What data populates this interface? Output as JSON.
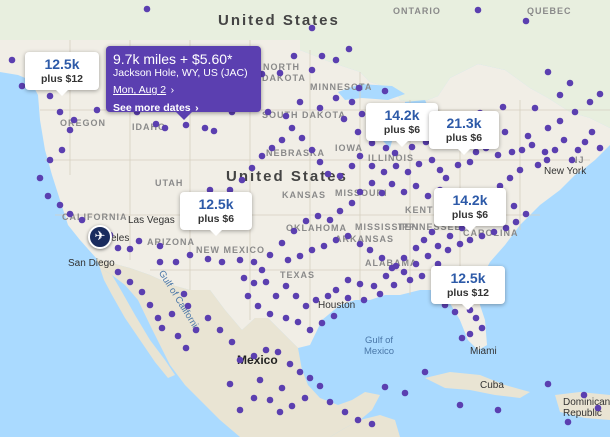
{
  "map": {
    "countries": {
      "united_states": "United States",
      "mexico": "Mexico",
      "cuba": "Cuba",
      "dominican_republic_line1": "Dominican",
      "dominican_republic_line2": "Republic"
    },
    "provinces": {
      "ontario": "ONTARIO",
      "quebec": "QUEBEC"
    },
    "states": {
      "oregon": "OREGON",
      "idaho": "IDAHO",
      "north_dakota_1": "NORTH",
      "north_dakota_2": "DAKOTA",
      "south_dakota": "SOUTH DAKOTA",
      "minnesota": "MINNESOTA",
      "nebraska": "NEBRASKA",
      "utah": "UTAH",
      "california": "CALIFORNIA",
      "arizona": "ARIZONA",
      "new_mexico": "NEW MEXICO",
      "kansas": "KANSAS",
      "missouri": "MISSOURI",
      "oklahoma": "OKLAHOMA",
      "arkansas": "ARKANSAS",
      "mississippi": "MISSISSIPPI",
      "alabama": "ALABAMA",
      "texas": "TEXAS",
      "iowa": "IOWA",
      "illinois": "ILLINOIS",
      "kentucky": "KENTUCKY",
      "tennessee": "TENNESSEE",
      "carolina": "CAROLINA",
      "nj": "NJ"
    },
    "cities": {
      "las_vegas": "Las Vegas",
      "san_diego": "San Diego",
      "new_york": "New York",
      "houston": "Houston",
      "miami": "Miami",
      "los_angeles_partial": "eles"
    },
    "water": {
      "gulf_of_california_1": "Gulf of",
      "gulf_of_california_2": "California",
      "gulf_of_mexico_1": "Gulf of",
      "gulf_of_mexico_2": "Mexico"
    }
  },
  "price_bubbles": [
    {
      "price": "12.5k",
      "extra": "plus $12"
    },
    {
      "price": "12.5k",
      "extra": "plus $6"
    },
    {
      "price": "14.2k",
      "extra": "plus $6"
    },
    {
      "price": "21.3k",
      "extra": "plus $6"
    },
    {
      "price": "14.2k",
      "extra": "plus $6"
    },
    {
      "price": "12.5k",
      "extra": "plus $12"
    }
  ],
  "selected_popup": {
    "title": "9.7k miles + $5.60*",
    "location": "Jackson Hole, WY, US (JAC)",
    "date": "Mon, Aug 2",
    "date_chevron": "›",
    "more_link": "See more dates",
    "more_chevron": "›"
  },
  "origin_marker": {
    "icon": "airplane-icon",
    "glyph": "✈"
  },
  "colors": {
    "destination_dot": "#5b3fb0",
    "popup_bg": "#5b3fb0",
    "price_text": "#2d5aa8",
    "water": "#aadaff",
    "land": "#f1eee6",
    "mexico_land": "#e9e4d3"
  }
}
